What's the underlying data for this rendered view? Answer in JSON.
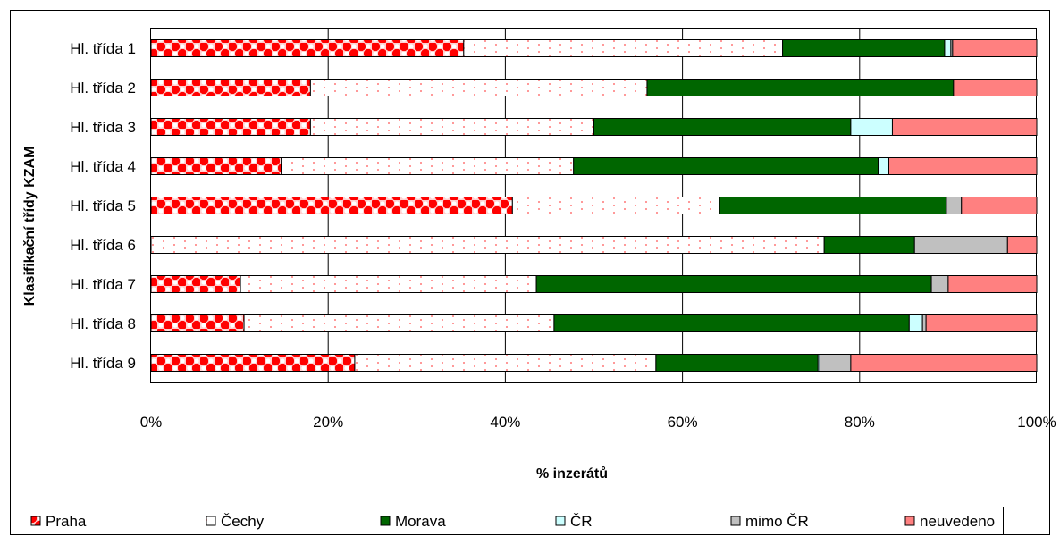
{
  "chart_data": {
    "type": "bar",
    "orientation": "horizontal",
    "stacked": "percent",
    "title": "",
    "xlabel": "% inzerátů",
    "ylabel": "Klasifikační třídy KZAM",
    "xlim": [
      0,
      100
    ],
    "xticks": [
      "0%",
      "20%",
      "40%",
      "60%",
      "80%",
      "100%"
    ],
    "grid": "vertical",
    "legend_position": "bottom",
    "categories": [
      "Hl. třída 1",
      "Hl. třída 2",
      "Hl. třída 3",
      "Hl. třída 4",
      "Hl. třída 5",
      "Hl. třída 6",
      "Hl. třída 7",
      "Hl. třída 8",
      "Hl. třída 9"
    ],
    "series": [
      {
        "name": "Praha",
        "color": "#ff0000",
        "pattern": "checker",
        "values": [
          35.3,
          18.0,
          18.0,
          14.7,
          40.8,
          0.0,
          10.1,
          10.5,
          23.0
        ]
      },
      {
        "name": "Čechy",
        "color": "#ffffff",
        "pattern": "dots",
        "values": [
          36.0,
          38.0,
          32.0,
          33.0,
          23.4,
          76.0,
          33.4,
          35.0,
          34.0
        ]
      },
      {
        "name": "Morava",
        "color": "#006600",
        "pattern": "solid",
        "values": [
          18.3,
          34.6,
          29.0,
          34.4,
          25.6,
          10.2,
          44.6,
          40.1,
          18.3
        ]
      },
      {
        "name": "ČR",
        "color": "#ccffff",
        "pattern": "solid",
        "values": [
          0.7,
          0.0,
          4.7,
          1.2,
          0.0,
          0.0,
          0.0,
          1.5,
          0.2
        ]
      },
      {
        "name": "mimo ČR",
        "color": "#c0c0c0",
        "pattern": "solid",
        "values": [
          0.2,
          0.0,
          0.0,
          0.0,
          1.7,
          10.5,
          1.9,
          0.4,
          3.5
        ]
      },
      {
        "name": "neuvedeno",
        "color": "#ff8080",
        "pattern": "solid",
        "values": [
          9.5,
          9.4,
          16.3,
          16.7,
          8.5,
          3.3,
          10.0,
          12.5,
          21.0
        ]
      }
    ]
  }
}
